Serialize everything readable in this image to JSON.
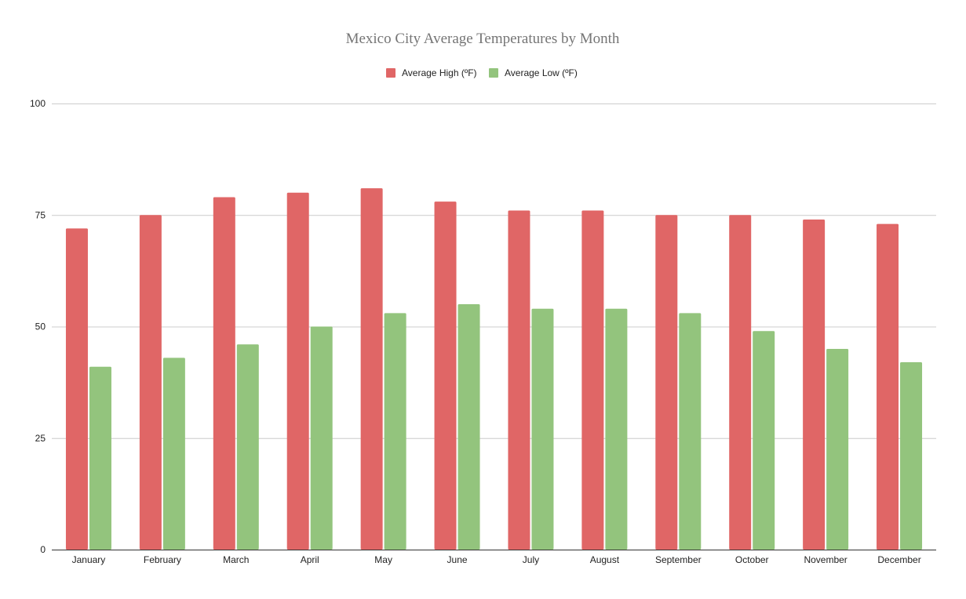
{
  "chart_data": {
    "type": "bar",
    "title": "Mexico City Average Temperatures by Month",
    "xlabel": "",
    "ylabel": "",
    "categories": [
      "January",
      "February",
      "March",
      "April",
      "May",
      "June",
      "July",
      "August",
      "September",
      "October",
      "November",
      "December"
    ],
    "series": [
      {
        "name": "Average High (ºF)",
        "color": "#e06666",
        "values": [
          72,
          75,
          79,
          80,
          81,
          78,
          76,
          76,
          75,
          75,
          74,
          73
        ]
      },
      {
        "name": "Average Low  (ºF)",
        "color": "#93c47d",
        "values": [
          41,
          43,
          46,
          50,
          53,
          55,
          54,
          54,
          53,
          49,
          45,
          42
        ]
      }
    ],
    "ylim": [
      0,
      100
    ],
    "yticks": [
      0,
      25,
      50,
      75,
      100
    ],
    "grid": true,
    "legend_position": "top-center"
  },
  "colors": {
    "gridline": "#cccccc",
    "baseline": "#333333",
    "title": "#757575",
    "text": "#222222"
  }
}
